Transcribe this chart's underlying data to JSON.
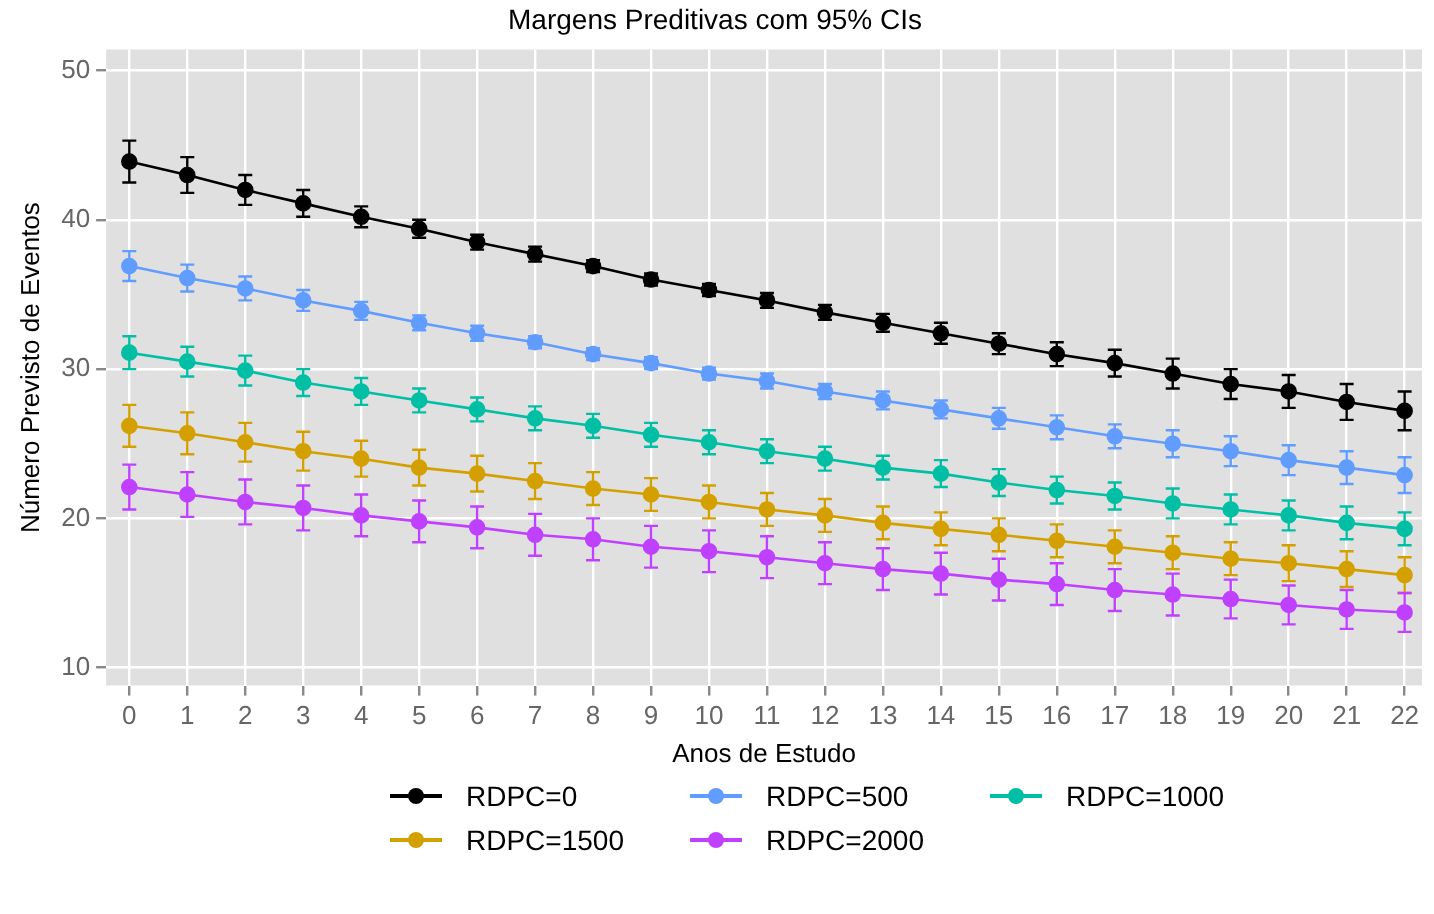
{
  "chart_data": {
    "type": "line",
    "title": "Margens Preditivas com 95% CIs",
    "xlabel": "Anos de Estudo",
    "ylabel": "Número Previsto de Eventos",
    "x": [
      0,
      1,
      2,
      3,
      4,
      5,
      6,
      7,
      8,
      9,
      10,
      11,
      12,
      13,
      14,
      15,
      16,
      17,
      18,
      19,
      20,
      21,
      22
    ],
    "series": [
      {
        "name": "RDPC=0",
        "color": "#000000",
        "values": [
          43.9,
          43.0,
          42.0,
          41.1,
          40.2,
          39.4,
          38.5,
          37.7,
          36.9,
          36.0,
          35.3,
          34.6,
          33.8,
          33.1,
          32.4,
          31.7,
          31.0,
          30.4,
          29.7,
          29.0,
          28.5,
          27.8,
          27.2
        ],
        "errors": [
          1.4,
          1.2,
          1.0,
          0.9,
          0.7,
          0.6,
          0.5,
          0.5,
          0.4,
          0.4,
          0.4,
          0.5,
          0.5,
          0.6,
          0.7,
          0.7,
          0.8,
          0.9,
          1.0,
          1.0,
          1.1,
          1.2,
          1.3
        ]
      },
      {
        "name": "RDPC=500",
        "color": "#619cff",
        "values": [
          36.9,
          36.1,
          35.4,
          34.6,
          33.9,
          33.1,
          32.4,
          31.8,
          31.0,
          30.4,
          29.7,
          29.2,
          28.5,
          27.9,
          27.3,
          26.7,
          26.1,
          25.5,
          25.0,
          24.5,
          23.9,
          23.4,
          22.9
        ],
        "errors": [
          1.0,
          0.9,
          0.8,
          0.7,
          0.6,
          0.5,
          0.5,
          0.4,
          0.4,
          0.4,
          0.4,
          0.5,
          0.5,
          0.6,
          0.6,
          0.7,
          0.8,
          0.8,
          0.9,
          1.0,
          1.0,
          1.1,
          1.2
        ]
      },
      {
        "name": "RDPC=1000",
        "color": "#00bfa5",
        "values": [
          31.1,
          30.5,
          29.9,
          29.1,
          28.5,
          27.9,
          27.3,
          26.7,
          26.2,
          25.6,
          25.1,
          24.5,
          24.0,
          23.4,
          23.0,
          22.4,
          21.9,
          21.5,
          21.0,
          20.6,
          20.2,
          19.7,
          19.3
        ],
        "errors": [
          1.1,
          1.0,
          1.0,
          0.9,
          0.9,
          0.8,
          0.8,
          0.8,
          0.8,
          0.8,
          0.8,
          0.8,
          0.8,
          0.8,
          0.9,
          0.9,
          0.9,
          0.9,
          1.0,
          1.0,
          1.0,
          1.1,
          1.1
        ]
      },
      {
        "name": "RDPC=1500",
        "color": "#d4a000",
        "values": [
          26.2,
          25.7,
          25.1,
          24.5,
          24.0,
          23.4,
          23.0,
          22.5,
          22.0,
          21.6,
          21.1,
          20.6,
          20.2,
          19.7,
          19.3,
          18.9,
          18.5,
          18.1,
          17.7,
          17.3,
          17.0,
          16.6,
          16.2
        ],
        "errors": [
          1.4,
          1.4,
          1.3,
          1.3,
          1.2,
          1.2,
          1.2,
          1.2,
          1.1,
          1.1,
          1.1,
          1.1,
          1.1,
          1.1,
          1.1,
          1.1,
          1.1,
          1.1,
          1.1,
          1.1,
          1.2,
          1.2,
          1.2
        ]
      },
      {
        "name": "RDPC=2000",
        "color": "#c040ff",
        "values": [
          22.1,
          21.6,
          21.1,
          20.7,
          20.2,
          19.8,
          19.4,
          18.9,
          18.6,
          18.1,
          17.8,
          17.4,
          17.0,
          16.6,
          16.3,
          15.9,
          15.6,
          15.2,
          14.9,
          14.6,
          14.2,
          13.9,
          13.7
        ],
        "errors": [
          1.5,
          1.5,
          1.5,
          1.5,
          1.4,
          1.4,
          1.4,
          1.4,
          1.4,
          1.4,
          1.4,
          1.4,
          1.4,
          1.4,
          1.4,
          1.4,
          1.4,
          1.4,
          1.4,
          1.3,
          1.3,
          1.3,
          1.3
        ]
      }
    ],
    "xlim": [
      -0.4,
      22.3
    ],
    "xticks": [
      0,
      1,
      2,
      3,
      4,
      5,
      6,
      7,
      8,
      9,
      10,
      11,
      12,
      13,
      14,
      15,
      16,
      17,
      18,
      19,
      20,
      21,
      22
    ],
    "ylim": [
      8.8,
      51.4
    ],
    "yticks": [
      10,
      20,
      30,
      40,
      50
    ],
    "grid": true,
    "legend": "bottom",
    "marker": "circle",
    "line_style": "solid"
  }
}
